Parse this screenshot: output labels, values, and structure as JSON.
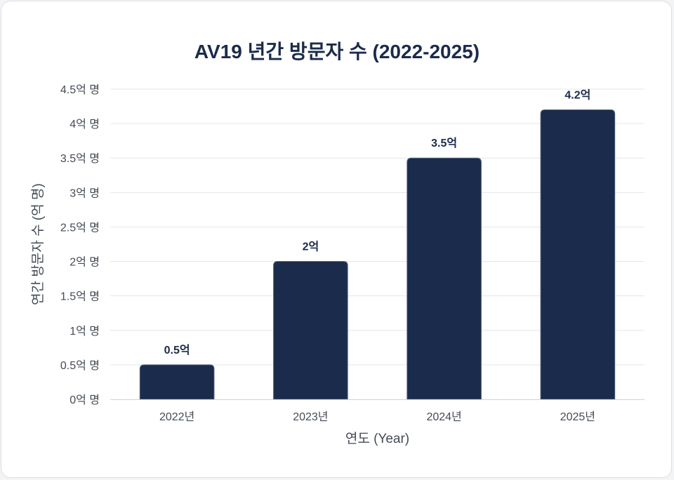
{
  "chart_data": {
    "type": "bar",
    "title": "AV19 년간 방문자 수 (2022-2025)",
    "xlabel": "연도 (Year)",
    "ylabel": "연간 방문자 수 (억 명)",
    "categories": [
      "2022년",
      "2023년",
      "2024년",
      "2025년"
    ],
    "values": [
      0.5,
      2,
      3.5,
      4.2
    ],
    "data_labels": [
      "0.5억",
      "2억",
      "3.5억",
      "4.2억"
    ],
    "ylim": [
      0,
      4.5
    ],
    "yticks": [
      0,
      0.5,
      1,
      1.5,
      2,
      2.5,
      3,
      3.5,
      4,
      4.5
    ],
    "ytick_labels": [
      "0억 명",
      "0.5억 명",
      "1억 명",
      "1.5억 명",
      "2억 명",
      "2.5억 명",
      "3억 명",
      "3.5억 명",
      "4억 명",
      "4.5억 명"
    ],
    "bar_color": "#1b2b4b",
    "grid": true,
    "legend": "none"
  }
}
